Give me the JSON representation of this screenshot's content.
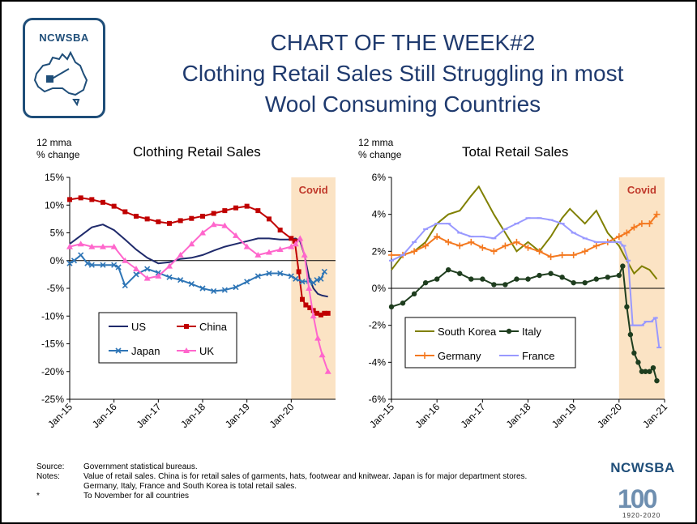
{
  "header": {
    "logo_text": "NCWSBA",
    "title_line1": "CHART OF THE WEEK#2",
    "title_line2": "Clothing Retail Sales Still Struggling in most",
    "title_line3": "Wool Consuming Countries"
  },
  "colors": {
    "title": "#1f3a6e",
    "covid_band": "#fbe3c4",
    "covid_label": "#c0392b",
    "brand": "#1f4e79"
  },
  "chart_data": [
    {
      "type": "line",
      "title": "Clothing Retail Sales",
      "ylabel_line1": "12 mma",
      "ylabel_line2": "% change",
      "ylim": [
        -25,
        15
      ],
      "yticks": [
        15,
        10,
        5,
        0,
        -5,
        -10,
        -15,
        -20,
        -25
      ],
      "ytick_labels": [
        "15%",
        "10%",
        "5%",
        "0%",
        "-5%",
        "-10%",
        "-15%",
        "-20%",
        "-25%"
      ],
      "xlim": [
        2015.0,
        2021.0
      ],
      "xticks": [
        2015,
        2016,
        2017,
        2018,
        2019,
        2020
      ],
      "xtick_labels": [
        "Jan-15",
        "Jan-16",
        "Jan-17",
        "Jan-18",
        "Jan-19",
        "Jan-20"
      ],
      "shaded_region": {
        "from": 2020.0,
        "to": 2021.0,
        "label": "Covid"
      },
      "legend_position": "bottom-left",
      "series": [
        {
          "name": "US",
          "color": "#1f2a6b",
          "marker": "none",
          "x": [
            2015.0,
            2015.25,
            2015.5,
            2015.75,
            2016.0,
            2016.25,
            2016.5,
            2016.75,
            2017.0,
            2017.25,
            2017.5,
            2017.75,
            2018.0,
            2018.25,
            2018.5,
            2018.75,
            2019.0,
            2019.25,
            2019.5,
            2019.75,
            2020.0,
            2020.1,
            2020.2,
            2020.3,
            2020.4,
            2020.5,
            2020.6,
            2020.7,
            2020.83
          ],
          "y": [
            3,
            4.5,
            6,
            6.5,
            5.5,
            3.8,
            2,
            0.5,
            -0.5,
            -0.3,
            0.3,
            0.5,
            1,
            1.8,
            2.5,
            3,
            3.5,
            4,
            4,
            3.8,
            3.8,
            4,
            3.5,
            1,
            -3,
            -5,
            -6,
            -6.3,
            -6.5
          ]
        },
        {
          "name": "China",
          "color": "#c00000",
          "marker": "square",
          "x": [
            2015.0,
            2015.25,
            2015.5,
            2015.75,
            2016.0,
            2016.25,
            2016.5,
            2016.75,
            2017.0,
            2017.25,
            2017.5,
            2017.75,
            2018.0,
            2018.25,
            2018.5,
            2018.75,
            2019.0,
            2019.25,
            2019.5,
            2019.75,
            2020.0,
            2020.08,
            2020.17,
            2020.25,
            2020.33,
            2020.42,
            2020.5,
            2020.58,
            2020.67,
            2020.75,
            2020.83
          ],
          "y": [
            11,
            11.3,
            11,
            10.5,
            9.8,
            8.8,
            8,
            7.5,
            7,
            6.7,
            7.2,
            7.6,
            8,
            8.5,
            9,
            9.5,
            9.8,
            9,
            7.5,
            5.5,
            4,
            3.5,
            -2,
            -7,
            -8,
            -8.5,
            -9,
            -9.5,
            -9.8,
            -9.5,
            -9.5
          ]
        },
        {
          "name": "Japan",
          "color": "#2e75b6",
          "marker": "x",
          "x": [
            2015.0,
            2015.1,
            2015.25,
            2015.4,
            2015.5,
            2015.75,
            2016.0,
            2016.1,
            2016.25,
            2016.5,
            2016.75,
            2017.0,
            2017.25,
            2017.5,
            2017.75,
            2018.0,
            2018.25,
            2018.5,
            2018.75,
            2019.0,
            2019.25,
            2019.5,
            2019.75,
            2020.0,
            2020.1,
            2020.25,
            2020.4,
            2020.5,
            2020.58,
            2020.67,
            2020.75
          ],
          "y": [
            -0.5,
            0,
            1,
            -0.5,
            -0.8,
            -0.8,
            -0.8,
            -1.2,
            -4.5,
            -2.5,
            -1.5,
            -2.2,
            -3,
            -3.5,
            -4.2,
            -5,
            -5.5,
            -5.3,
            -4.8,
            -3.8,
            -2.8,
            -2.3,
            -2.3,
            -2.8,
            -3.3,
            -3.8,
            -3.7,
            -4,
            -3.5,
            -3.3,
            -2
          ]
        },
        {
          "name": "UK",
          "color": "#ff66cc",
          "marker": "triangle",
          "x": [
            2015.0,
            2015.25,
            2015.5,
            2015.75,
            2016.0,
            2016.25,
            2016.5,
            2016.75,
            2017.0,
            2017.25,
            2017.5,
            2017.75,
            2018.0,
            2018.25,
            2018.5,
            2018.75,
            2019.0,
            2019.25,
            2019.5,
            2019.75,
            2020.0,
            2020.1,
            2020.2,
            2020.3,
            2020.4,
            2020.5,
            2020.6,
            2020.7,
            2020.83
          ],
          "y": [
            2.5,
            3,
            2.5,
            2.5,
            2.5,
            0,
            -1.5,
            -3.2,
            -2.8,
            -1,
            1,
            3,
            5,
            6.5,
            6.3,
            4.5,
            2.5,
            1,
            1.5,
            2,
            2.5,
            3,
            4,
            1,
            -5,
            -10,
            -14,
            -17,
            -20
          ]
        }
      ]
    },
    {
      "type": "line",
      "title": "Total Retail Sales",
      "ylabel_line1": "12 mma",
      "ylabel_line2": "% change",
      "ylim": [
        -6,
        6
      ],
      "yticks": [
        6,
        4,
        2,
        0,
        -2,
        -4,
        -6
      ],
      "ytick_labels": [
        "6%",
        "4%",
        "2%",
        "0%",
        "-2%",
        "-4%",
        "-6%"
      ],
      "xlim": [
        2015.0,
        2021.0
      ],
      "xticks": [
        2015,
        2016,
        2017,
        2018,
        2019,
        2020,
        2021
      ],
      "xtick_labels": [
        "Jan-15",
        "Jan-16",
        "Jan-17",
        "Jan-18",
        "Jan-19",
        "Jan-20",
        "Jan-21"
      ],
      "shaded_region": {
        "from": 2020.0,
        "to": 2021.0,
        "label": "Covid"
      },
      "legend_position": "bottom",
      "series": [
        {
          "name": "South Korea",
          "color": "#808000",
          "marker": "none",
          "x": [
            2015.0,
            2015.25,
            2015.5,
            2015.75,
            2016.0,
            2016.25,
            2016.5,
            2016.75,
            2016.92,
            2017.25,
            2017.5,
            2017.75,
            2018.0,
            2018.25,
            2018.5,
            2018.75,
            2018.92,
            2019.25,
            2019.5,
            2019.75,
            2020.0,
            2020.17,
            2020.33,
            2020.5,
            2020.67,
            2020.83
          ],
          "y": [
            1,
            1.8,
            2,
            2.5,
            3.5,
            4,
            4.2,
            5,
            5.5,
            4,
            3,
            2,
            2.5,
            2,
            2.8,
            3.8,
            4.3,
            3.5,
            4.2,
            3,
            2.3,
            1.5,
            0.8,
            1.2,
            1,
            0.5
          ]
        },
        {
          "name": "Italy",
          "color": "#1e3d1e",
          "marker": "circle",
          "x": [
            2015.0,
            2015.25,
            2015.5,
            2015.75,
            2016.0,
            2016.25,
            2016.5,
            2016.75,
            2017.0,
            2017.25,
            2017.5,
            2017.75,
            2018.0,
            2018.25,
            2018.5,
            2018.75,
            2019.0,
            2019.25,
            2019.5,
            2019.75,
            2020.0,
            2020.08,
            2020.17,
            2020.25,
            2020.33,
            2020.42,
            2020.5,
            2020.58,
            2020.67,
            2020.75,
            2020.83
          ],
          "y": [
            -1,
            -0.8,
            -0.3,
            0.3,
            0.5,
            1,
            0.8,
            0.5,
            0.5,
            0.2,
            0.2,
            0.5,
            0.5,
            0.7,
            0.8,
            0.6,
            0.3,
            0.3,
            0.5,
            0.6,
            0.7,
            1.2,
            -1,
            -2.5,
            -3.5,
            -4,
            -4.5,
            -4.5,
            -4.5,
            -4.3,
            -5
          ]
        },
        {
          "name": "Germany",
          "color": "#f47920",
          "marker": "plus",
          "x": [
            2015.0,
            2015.25,
            2015.5,
            2015.75,
            2016.0,
            2016.25,
            2016.5,
            2016.75,
            2017.0,
            2017.25,
            2017.5,
            2017.75,
            2018.0,
            2018.25,
            2018.5,
            2018.75,
            2019.0,
            2019.25,
            2019.5,
            2019.75,
            2020.0,
            2020.17,
            2020.33,
            2020.5,
            2020.67,
            2020.83
          ],
          "y": [
            1.8,
            1.8,
            2,
            2.3,
            2.8,
            2.5,
            2.3,
            2.5,
            2.2,
            2,
            2.3,
            2.5,
            2.2,
            2,
            1.7,
            1.8,
            1.8,
            2,
            2.3,
            2.5,
            2.8,
            3,
            3.3,
            3.5,
            3.5,
            4
          ]
        },
        {
          "name": "France",
          "color": "#9999ff",
          "marker": "dash",
          "x": [
            2015.0,
            2015.25,
            2015.5,
            2015.75,
            2016.0,
            2016.25,
            2016.5,
            2016.75,
            2017.0,
            2017.25,
            2017.5,
            2017.75,
            2018.0,
            2018.25,
            2018.5,
            2018.75,
            2019.0,
            2019.25,
            2019.5,
            2019.75,
            2020.0,
            2020.1,
            2020.2,
            2020.3,
            2020.4,
            2020.5,
            2020.6,
            2020.7,
            2020.8,
            2020.88
          ],
          "y": [
            1.5,
            1.8,
            2.5,
            3.2,
            3.5,
            3.5,
            3,
            2.8,
            2.8,
            2.7,
            3.2,
            3.5,
            3.8,
            3.8,
            3.7,
            3.5,
            3,
            2.7,
            2.5,
            2.5,
            2.5,
            2.3,
            1.5,
            -2,
            -2,
            -2,
            -1.8,
            -1.8,
            -1.6,
            -3.2
          ]
        }
      ]
    }
  ],
  "footer": {
    "source_label": "Source:",
    "source_text": "Government statistical bureaus.",
    "notes_label": "Notes:",
    "notes_line1": "Value of retail sales. China is for retail sales of garments, hats, footwear and knitwear. Japan is for major department stores.",
    "notes_line2": "Germany, Italy, France and South Korea is total retail sales.",
    "asterisk_label": "*",
    "asterisk_text": "To November for all countries",
    "brand": "NCWSBA",
    "century": "100",
    "years": "1920-2020"
  }
}
